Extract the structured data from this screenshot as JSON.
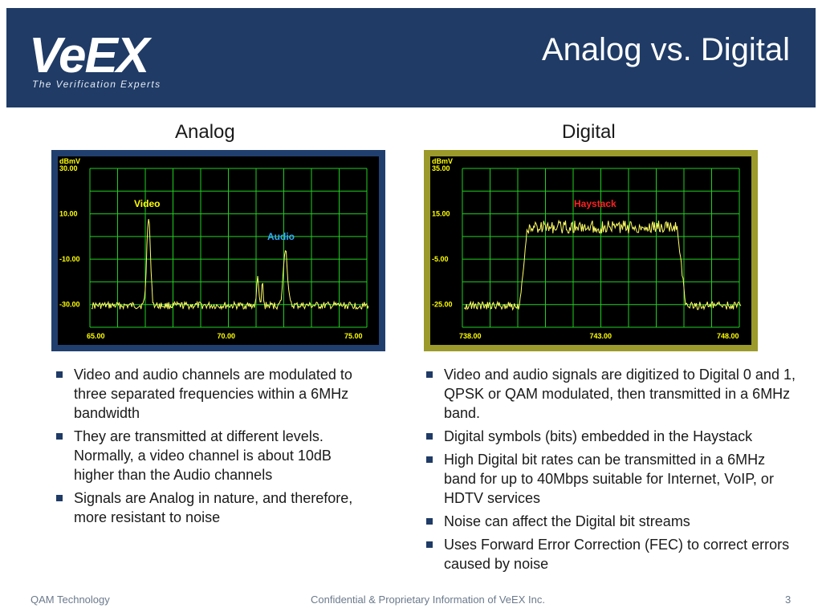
{
  "header": {
    "logo_text": "VeEX",
    "tagline": "The Verification Experts",
    "title": "Analog vs. Digital"
  },
  "columns": {
    "analog": {
      "heading": "Analog",
      "chart": {
        "unit": "dBmV",
        "y_ticks": [
          "30.00",
          "10.00",
          "-10.00",
          "-30.00"
        ],
        "x_ticks": [
          "65.00",
          "70.00",
          "75.00"
        ],
        "annotations": [
          {
            "text": "Video",
            "color": "#ffff00"
          },
          {
            "text": "Audio",
            "color": "#33aaff"
          }
        ]
      },
      "bullets": [
        "Video and audio channels are modulated to three separated frequencies within a 6MHz bandwidth",
        "They are transmitted at different levels. Normally, a video channel is about 10dB higher than the Audio channels",
        "Signals are Analog in nature, and therefore, more resistant to noise"
      ]
    },
    "digital": {
      "heading": "Digital",
      "chart": {
        "unit": "dBmV",
        "y_ticks": [
          "35.00",
          "15.00",
          "-5.00",
          "-25.00"
        ],
        "x_ticks": [
          "738.00",
          "743.00",
          "748.00"
        ],
        "annotations": [
          {
            "text": "Haystack",
            "color": "#ff2020"
          }
        ]
      },
      "bullets": [
        "Video and audio signals are digitized to Digital 0 and 1, QPSK or QAM modulated, then transmitted in a 6MHz band.",
        "Digital symbols (bits) embedded in the Haystack",
        "High Digital bit rates can be transmitted in a 6MHz band for up to 40Mbps suitable for Internet, VoIP, or HDTV services",
        "Noise can affect the Digital bit streams",
        "Uses Forward Error Correction (FEC) to correct errors caused by noise"
      ]
    }
  },
  "footer": {
    "left": "QAM Technology",
    "center": "Confidential & Proprietary Information of VeEX Inc.",
    "page": "3"
  }
}
